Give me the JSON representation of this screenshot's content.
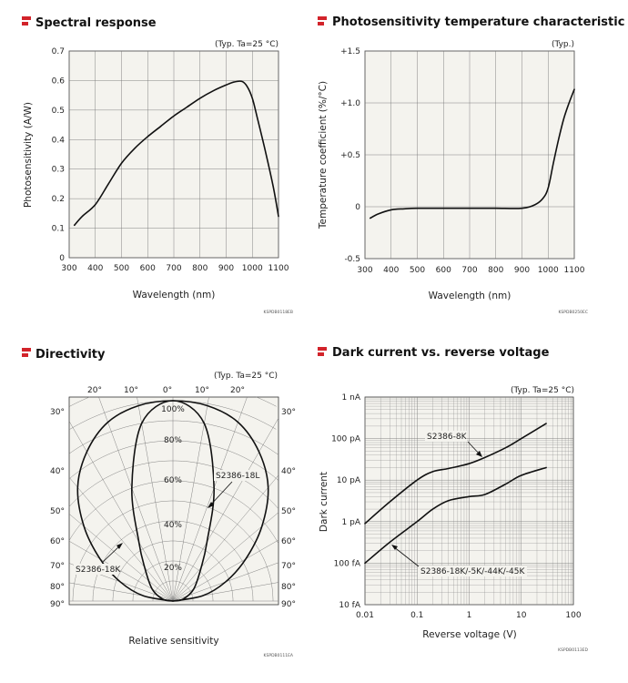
{
  "colors": {
    "accent": "#d2232a",
    "plot_bg": "#f4f3ee",
    "grid": "#777777",
    "curve": "#111111"
  },
  "panels": {
    "spectral": {
      "title": "Spectral response",
      "condition": "(Typ. Ta=25 °C)",
      "code": "KSPDB0118EB"
    },
    "temperature": {
      "title": "Photosensitivity temperature characteristic",
      "condition": "(Typ.)",
      "code": "KSPDB0250EC"
    },
    "directivity": {
      "title": "Directivity",
      "condition": "(Typ. Ta=25 °C)",
      "code": "KSPDB0111EA",
      "top_labels": [
        "20°",
        "10°",
        "0°",
        "10°",
        "20°"
      ],
      "side_labels": [
        "30°",
        "40°",
        "50°",
        "60°",
        "70°",
        "80°",
        "90°"
      ],
      "radial_labels": [
        "100%",
        "80%",
        "60%",
        "40%",
        "20%"
      ],
      "annotation_a": "S2386-18L",
      "annotation_b": "S2386-18K"
    },
    "dark": {
      "title": "Dark current vs. reverse voltage",
      "condition": "(Typ. Ta=25 °C)",
      "code": "KSPDB0113ED",
      "annotation_a": "S2386-8K",
      "annotation_b": "S2386-18K/-5K/-44K/-45K"
    }
  },
  "chart_data": [
    {
      "type": "line",
      "title": "Spectral response",
      "xlabel": "Wavelength (nm)",
      "ylabel": "Photosensitivity (A/W)",
      "xlim": [
        300,
        1100
      ],
      "ylim": [
        0,
        0.7
      ],
      "xticks": [
        "300",
        "400",
        "500",
        "600",
        "700",
        "800",
        "900",
        "1000",
        "1100"
      ],
      "yticks": [
        "0",
        "0.1",
        "0.2",
        "0.3",
        "0.4",
        "0.5",
        "0.6",
        "0.7"
      ],
      "grid": true,
      "series": [
        {
          "x": [
            320,
            350,
            400,
            450,
            500,
            550,
            600,
            650,
            700,
            750,
            800,
            850,
            900,
            930,
            960,
            980,
            1000,
            1020,
            1050,
            1080,
            1100
          ],
          "y": [
            0.11,
            0.14,
            0.18,
            0.25,
            0.32,
            0.37,
            0.41,
            0.445,
            0.48,
            0.51,
            0.54,
            0.565,
            0.585,
            0.595,
            0.597,
            0.58,
            0.54,
            0.47,
            0.36,
            0.24,
            0.14
          ]
        }
      ]
    },
    {
      "type": "line",
      "title": "Photosensitivity temperature characteristic",
      "xlabel": "Wavelength (nm)",
      "ylabel": "Temperature coefficient (%/°C)",
      "xlim": [
        300,
        1100
      ],
      "ylim": [
        -0.5,
        1.5
      ],
      "xticks": [
        "300",
        "400",
        "500",
        "600",
        "700",
        "800",
        "900",
        "1000",
        "1100"
      ],
      "yticks": [
        "-0.5",
        "0",
        "+0.5",
        "+1.0",
        "+1.5"
      ],
      "grid": true,
      "series": [
        {
          "x": [
            320,
            350,
            400,
            450,
            500,
            600,
            700,
            800,
            900,
            950,
            980,
            1000,
            1020,
            1040,
            1060,
            1080,
            1100
          ],
          "y": [
            -0.11,
            -0.07,
            -0.03,
            -0.02,
            -0.015,
            -0.015,
            -0.015,
            -0.015,
            -0.015,
            0.02,
            0.08,
            0.18,
            0.42,
            0.65,
            0.85,
            1.0,
            1.13
          ]
        }
      ]
    },
    {
      "type": "line",
      "title": "Directivity",
      "xlabel": "Relative sensitivity",
      "ylabel": "",
      "angle_range_deg": [
        -90,
        90
      ],
      "radial_range_pct": [
        0,
        100
      ],
      "grid": true,
      "series": [
        {
          "name": "S2386-18L",
          "angle_deg": [
            -90,
            -80,
            -60,
            -40,
            -30,
            -20,
            -10,
            0,
            10,
            20,
            30,
            40,
            60,
            80,
            90
          ],
          "value_pct": [
            0,
            5,
            12,
            22,
            34,
            60,
            90,
            100,
            90,
            60,
            34,
            22,
            12,
            5,
            0
          ]
        },
        {
          "name": "S2386-18K",
          "angle_deg": [
            -90,
            -80,
            -70,
            -60,
            -50,
            -40,
            -30,
            -20,
            -10,
            0,
            10,
            20,
            30,
            40,
            50,
            60,
            70,
            80,
            90
          ],
          "value_pct": [
            0,
            15,
            28,
            42,
            58,
            74,
            86,
            95,
            99,
            100,
            99,
            95,
            86,
            74,
            58,
            42,
            28,
            15,
            0
          ]
        }
      ]
    },
    {
      "type": "line",
      "title": "Dark current vs. reverse voltage",
      "xlabel": "Reverse voltage (V)",
      "ylabel": "Dark current",
      "xscale": "log",
      "yscale": "log",
      "xlim": [
        0.01,
        100
      ],
      "ylim_A": [
        1e-14,
        1e-09
      ],
      "xticks": [
        "0.01",
        "0.1",
        "1",
        "10",
        "100"
      ],
      "yticks": [
        "10 fA",
        "100 fA",
        "1 pA",
        "10 pA",
        "100 pA",
        "1 nA"
      ],
      "grid": true,
      "series": [
        {
          "name": "S2386-8K",
          "x": [
            0.01,
            0.03,
            0.1,
            0.2,
            0.4,
            1,
            2,
            5,
            10,
            30
          ],
          "y_A": [
            9e-13,
            3e-12,
            1e-11,
            1.6e-11,
            1.9e-11,
            2.5e-11,
            3.5e-11,
            6e-11,
            1e-10,
            2.3e-10
          ]
        },
        {
          "name": "S2386-18K/-5K/-44K/-45K",
          "x": [
            0.01,
            0.03,
            0.1,
            0.2,
            0.4,
            1,
            2,
            5,
            10,
            30
          ],
          "y_A": [
            1e-13,
            3.2e-13,
            1e-12,
            2e-12,
            3.2e-12,
            4e-12,
            4.5e-12,
            8e-12,
            1.3e-11,
            2e-11
          ]
        }
      ]
    }
  ]
}
